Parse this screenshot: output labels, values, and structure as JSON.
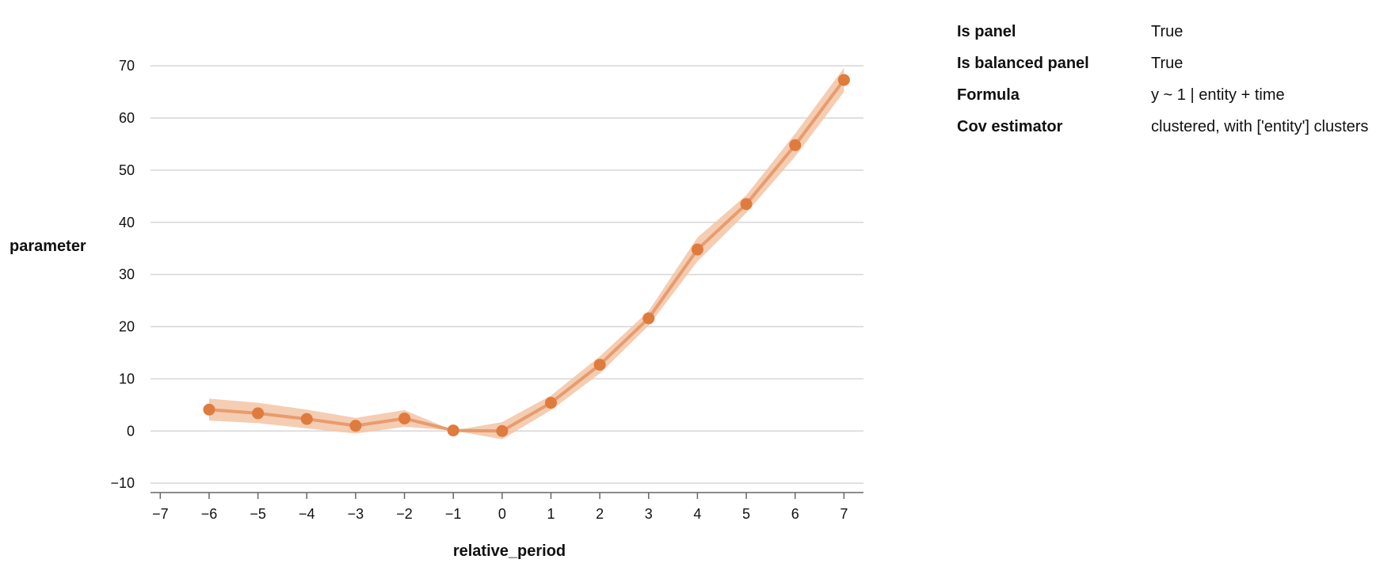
{
  "chart_data": {
    "type": "line",
    "xlabel": "relative_period",
    "ylabel": "parameter",
    "xlim": [
      -7.2,
      7.4
    ],
    "ylim": [
      -11.5,
      72
    ],
    "xticks": [
      -7,
      -6,
      -5,
      -4,
      -3,
      -2,
      -1,
      0,
      1,
      2,
      3,
      4,
      5,
      6,
      7
    ],
    "yticks": [
      -10,
      0,
      10,
      20,
      30,
      40,
      50,
      60,
      70
    ],
    "grid": "horizontal",
    "color": "#e07b3e",
    "band_color": "#f2c4a6",
    "series": [
      {
        "x": [
          -6,
          -5,
          -4,
          -3,
          -2,
          -1,
          0,
          1,
          2,
          3,
          4,
          5,
          6,
          7
        ],
        "y": [
          4.1,
          3.4,
          2.3,
          1.0,
          2.4,
          0.1,
          0.0,
          5.4,
          12.7,
          21.6,
          34.8,
          43.5,
          54.8,
          67.3
        ],
        "lower": [
          2.0,
          1.5,
          0.5,
          -0.5,
          0.8,
          0.1,
          -1.6,
          4.0,
          11.0,
          20.2,
          32.5,
          41.8,
          52.6,
          65.0
        ],
        "upper": [
          6.2,
          5.4,
          4.1,
          2.5,
          4.0,
          0.1,
          1.7,
          6.8,
          14.3,
          23.0,
          37.1,
          45.2,
          57.0,
          69.6
        ]
      }
    ]
  },
  "info": {
    "rows": [
      {
        "key": "Is panel",
        "value": "True"
      },
      {
        "key": "Is balanced panel",
        "value": "True"
      },
      {
        "key": "Formula",
        "value": "y ~ 1 | entity + time"
      },
      {
        "key": "Cov estimator",
        "value": "clustered, with ['entity'] clusters"
      }
    ]
  }
}
